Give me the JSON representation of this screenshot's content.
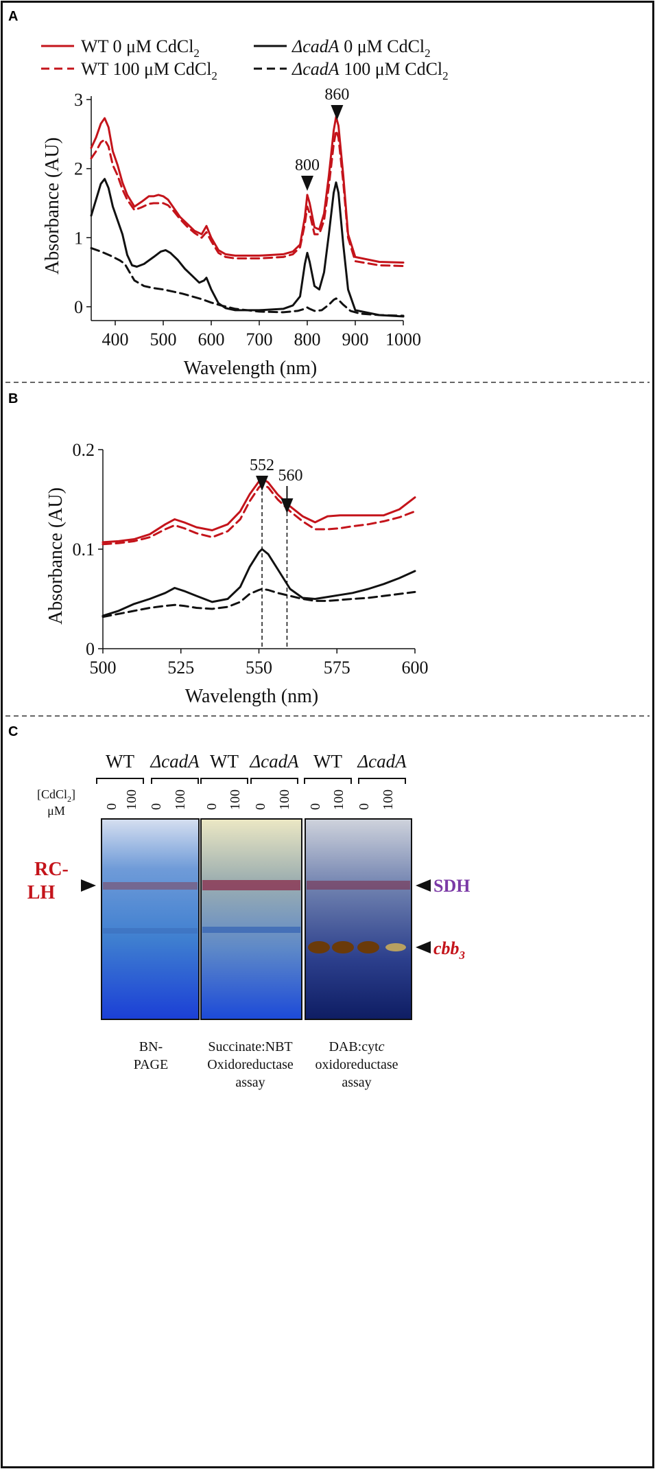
{
  "colors": {
    "red": "#c4141b",
    "black": "#111111",
    "purple": "#7b3aa6"
  },
  "panel_labels": {
    "a": "A",
    "b": "B",
    "c": "C"
  },
  "legend": {
    "wt_prefix": "WT 0 μM CdCl",
    "wt100_prefix": "WT 100 μM CdCl",
    "mut_name": "ΔcadA",
    "mut_suffix": " 0 μM CdCl",
    "mut100_suffix": " 100 μM CdCl",
    "sub": "2"
  },
  "chart_data": [
    {
      "type": "line",
      "panel": "A",
      "xlabel": "Wavelength (nm)",
      "ylabel": "Absorbance (AU)",
      "xlim": [
        350,
        1000
      ],
      "ylim": [
        -0.2,
        3.05
      ],
      "xticks": [
        "400",
        "500",
        "600",
        "700",
        "800",
        "900",
        "1000"
      ],
      "yticks": [
        "0",
        "1",
        "2",
        "3"
      ],
      "annotations": [
        "800",
        "860"
      ],
      "series": [
        {
          "name": "WT 0 μM CdCl2",
          "style": "solid",
          "color": "red",
          "x": [
            350,
            360,
            370,
            378,
            386,
            395,
            405,
            415,
            425,
            440,
            455,
            470,
            480,
            490,
            500,
            510,
            520,
            535,
            550,
            565,
            580,
            590,
            600,
            615,
            630,
            650,
            700,
            750,
            770,
            785,
            795,
            800,
            805,
            815,
            825,
            835,
            845,
            855,
            860,
            865,
            875,
            885,
            900,
            950,
            1000
          ],
          "y": [
            2.3,
            2.45,
            2.65,
            2.73,
            2.6,
            2.25,
            2.05,
            1.8,
            1.62,
            1.45,
            1.52,
            1.6,
            1.6,
            1.62,
            1.6,
            1.55,
            1.45,
            1.3,
            1.2,
            1.1,
            1.05,
            1.17,
            1.0,
            0.82,
            0.76,
            0.74,
            0.74,
            0.76,
            0.8,
            0.9,
            1.3,
            1.62,
            1.5,
            1.15,
            1.12,
            1.35,
            1.9,
            2.55,
            2.75,
            2.62,
            1.9,
            1.05,
            0.72,
            0.65,
            0.64
          ]
        },
        {
          "name": "WT 100 μM CdCl2",
          "style": "dashed",
          "color": "red",
          "x": [
            350,
            360,
            370,
            378,
            386,
            395,
            405,
            415,
            425,
            440,
            455,
            470,
            480,
            490,
            500,
            510,
            520,
            535,
            550,
            565,
            580,
            590,
            600,
            615,
            630,
            650,
            700,
            750,
            770,
            785,
            795,
            800,
            805,
            815,
            825,
            835,
            845,
            855,
            860,
            865,
            875,
            885,
            900,
            950,
            1000
          ],
          "y": [
            2.15,
            2.25,
            2.38,
            2.42,
            2.32,
            2.05,
            1.9,
            1.7,
            1.55,
            1.4,
            1.44,
            1.49,
            1.5,
            1.5,
            1.5,
            1.47,
            1.4,
            1.27,
            1.16,
            1.07,
            1.0,
            1.08,
            0.95,
            0.78,
            0.72,
            0.7,
            0.7,
            0.72,
            0.76,
            0.86,
            1.2,
            1.45,
            1.35,
            1.05,
            1.05,
            1.25,
            1.75,
            2.35,
            2.55,
            2.45,
            1.8,
            1.0,
            0.66,
            0.6,
            0.59
          ]
        },
        {
          "name": "ΔcadA 0 μM CdCl2",
          "style": "solid",
          "color": "black",
          "x": [
            350,
            360,
            370,
            378,
            386,
            395,
            405,
            415,
            425,
            435,
            445,
            460,
            480,
            495,
            505,
            515,
            530,
            545,
            560,
            575,
            585,
            590,
            600,
            615,
            630,
            650,
            700,
            750,
            770,
            785,
            795,
            800,
            805,
            815,
            825,
            835,
            845,
            855,
            860,
            865,
            875,
            885,
            900,
            950,
            1000
          ],
          "y": [
            1.32,
            1.55,
            1.78,
            1.85,
            1.72,
            1.45,
            1.25,
            1.05,
            0.75,
            0.6,
            0.58,
            0.62,
            0.72,
            0.8,
            0.82,
            0.78,
            0.68,
            0.55,
            0.45,
            0.35,
            0.38,
            0.42,
            0.25,
            0.05,
            -0.02,
            -0.05,
            -0.05,
            -0.03,
            0.02,
            0.15,
            0.62,
            0.78,
            0.65,
            0.3,
            0.25,
            0.5,
            1.05,
            1.65,
            1.8,
            1.65,
            0.9,
            0.25,
            -0.05,
            -0.12,
            -0.14
          ]
        },
        {
          "name": "ΔcadA 100 μM CdCl2",
          "style": "dashed",
          "color": "black",
          "x": [
            350,
            370,
            390,
            410,
            420,
            430,
            440,
            460,
            480,
            500,
            520,
            540,
            560,
            580,
            600,
            620,
            650,
            700,
            750,
            780,
            795,
            800,
            805,
            815,
            830,
            845,
            855,
            860,
            865,
            875,
            890,
            910,
            950,
            1000
          ],
          "y": [
            0.85,
            0.8,
            0.74,
            0.67,
            0.62,
            0.5,
            0.38,
            0.3,
            0.27,
            0.25,
            0.22,
            0.19,
            0.15,
            0.11,
            0.06,
            0.02,
            -0.03,
            -0.07,
            -0.08,
            -0.06,
            -0.03,
            -0.01,
            -0.03,
            -0.06,
            -0.05,
            0.03,
            0.1,
            0.12,
            0.1,
            0.03,
            -0.06,
            -0.1,
            -0.12,
            -0.13
          ]
        }
      ]
    },
    {
      "type": "line",
      "panel": "B",
      "xlabel": "Wavelength (nm)",
      "ylabel": "Absorbance (AU)",
      "xlim": [
        500,
        600
      ],
      "ylim": [
        0,
        0.2
      ],
      "xticks": [
        "500",
        "525",
        "550",
        "575",
        "600"
      ],
      "yticks": [
        "0",
        "0.1",
        "0.2"
      ],
      "annotations": [
        "552",
        "560"
      ],
      "vlines": [
        551,
        559
      ],
      "series": [
        {
          "name": "WT 0 μM CdCl2",
          "style": "solid",
          "color": "red",
          "x": [
            500,
            505,
            510,
            515,
            520,
            523,
            526,
            530,
            535,
            540,
            544,
            547,
            550,
            551,
            553,
            556,
            560,
            564,
            568,
            572,
            576,
            580,
            585,
            590,
            595,
            600
          ],
          "y": [
            0.107,
            0.108,
            0.11,
            0.115,
            0.125,
            0.13,
            0.127,
            0.122,
            0.119,
            0.125,
            0.138,
            0.155,
            0.168,
            0.171,
            0.167,
            0.155,
            0.143,
            0.133,
            0.127,
            0.133,
            0.134,
            0.134,
            0.134,
            0.134,
            0.14,
            0.152
          ]
        },
        {
          "name": "WT 100 μM CdCl2",
          "style": "dashed",
          "color": "red",
          "x": [
            500,
            505,
            510,
            515,
            520,
            523,
            526,
            530,
            535,
            540,
            544,
            547,
            550,
            551,
            553,
            556,
            560,
            564,
            568,
            572,
            576,
            580,
            585,
            590,
            595,
            600
          ],
          "y": [
            0.105,
            0.106,
            0.108,
            0.112,
            0.12,
            0.124,
            0.121,
            0.116,
            0.112,
            0.118,
            0.13,
            0.148,
            0.162,
            0.165,
            0.162,
            0.15,
            0.138,
            0.128,
            0.12,
            0.12,
            0.121,
            0.123,
            0.125,
            0.128,
            0.132,
            0.138
          ]
        },
        {
          "name": "ΔcadA 0 μM CdCl2",
          "style": "solid",
          "color": "black",
          "x": [
            500,
            505,
            510,
            515,
            520,
            523,
            526,
            530,
            535,
            540,
            544,
            547,
            550,
            551,
            553,
            556,
            560,
            564,
            568,
            572,
            576,
            580,
            585,
            590,
            595,
            600
          ],
          "y": [
            0.033,
            0.038,
            0.045,
            0.05,
            0.056,
            0.061,
            0.058,
            0.053,
            0.047,
            0.05,
            0.062,
            0.082,
            0.097,
            0.1,
            0.095,
            0.08,
            0.06,
            0.051,
            0.05,
            0.052,
            0.054,
            0.056,
            0.06,
            0.065,
            0.071,
            0.078
          ]
        },
        {
          "name": "ΔcadA 100 μM CdCl2",
          "style": "dashed",
          "color": "black",
          "x": [
            500,
            505,
            510,
            515,
            520,
            523,
            526,
            530,
            535,
            540,
            544,
            547,
            550,
            551,
            553,
            556,
            560,
            564,
            568,
            572,
            576,
            580,
            585,
            590,
            595,
            600
          ],
          "y": [
            0.032,
            0.035,
            0.038,
            0.041,
            0.043,
            0.044,
            0.043,
            0.041,
            0.04,
            0.042,
            0.047,
            0.055,
            0.059,
            0.06,
            0.059,
            0.056,
            0.053,
            0.05,
            0.048,
            0.048,
            0.049,
            0.05,
            0.051,
            0.053,
            0.055,
            0.057
          ]
        }
      ]
    }
  ],
  "gel": {
    "groups": [
      {
        "label": "WT",
        "italic": false
      },
      {
        "label": "ΔcadA",
        "italic": true
      },
      {
        "label": "WT",
        "italic": false
      },
      {
        "label": "ΔcadA",
        "italic": true
      },
      {
        "label": "WT",
        "italic": false
      },
      {
        "label": "ΔcadA",
        "italic": true
      }
    ],
    "conc_header": "[CdCl",
    "conc_sub": "2",
    "conc_close": "]",
    "conc_unit": "μM",
    "lane_labels": [
      "0",
      "100",
      "0",
      "100",
      "0",
      "100",
      "0",
      "100",
      "0",
      "100",
      "0",
      "100"
    ],
    "rc_lh_line1": "RC-",
    "rc_lh_line2": "LH",
    "sdh": "SDH",
    "cbb_main": "cbb",
    "cbb_sub": "3",
    "captions": {
      "bn_1": "BN-",
      "bn_2": "PAGE",
      "succ_1": "Succinate:NBT",
      "succ_2": "Oxidoreductase",
      "succ_3": "assay",
      "dab_1a": "DAB:cyt",
      "dab_1b": "c",
      "dab_2": "oxidoreductase",
      "dab_3": "assay"
    }
  }
}
